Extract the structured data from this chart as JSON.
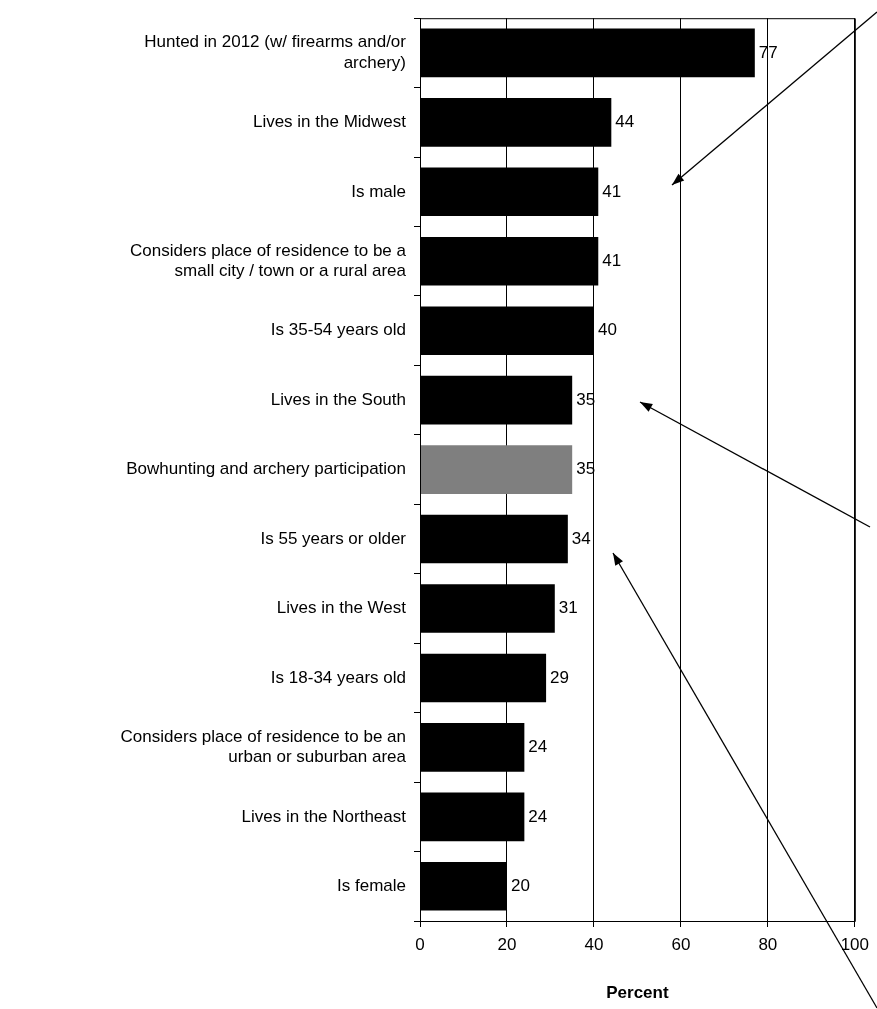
{
  "chart_data": {
    "type": "bar",
    "orientation": "horizontal",
    "xlabel": "Percent",
    "categories": [
      "Hunted in 2012 (w/ firearms and/or archery)",
      "Lives in the Midwest",
      "Is male",
      "Considers place of residence to be a small city / town or a rural area",
      "Is 35-54 years old",
      "Lives in the South",
      "Bowhunting and archery participation",
      "Is 55 years or older",
      "Lives in the West",
      "Is 18-34 years old",
      "Considers place of residence to be an urban or suburban area",
      "Lives in the Northeast",
      "Is female"
    ],
    "values": [
      77,
      44,
      41,
      41,
      40,
      35,
      35,
      34,
      31,
      29,
      24,
      24,
      20
    ],
    "colors": [
      "#000000",
      "#000000",
      "#000000",
      "#000000",
      "#000000",
      "#000000",
      "#7f7f7f",
      "#000000",
      "#000000",
      "#000000",
      "#000000",
      "#000000",
      "#000000"
    ],
    "xlim": [
      0,
      100
    ],
    "xticks": [
      0,
      20,
      40,
      60,
      80,
      100
    ],
    "grid": "x",
    "data_labels": true,
    "legend": false
  }
}
